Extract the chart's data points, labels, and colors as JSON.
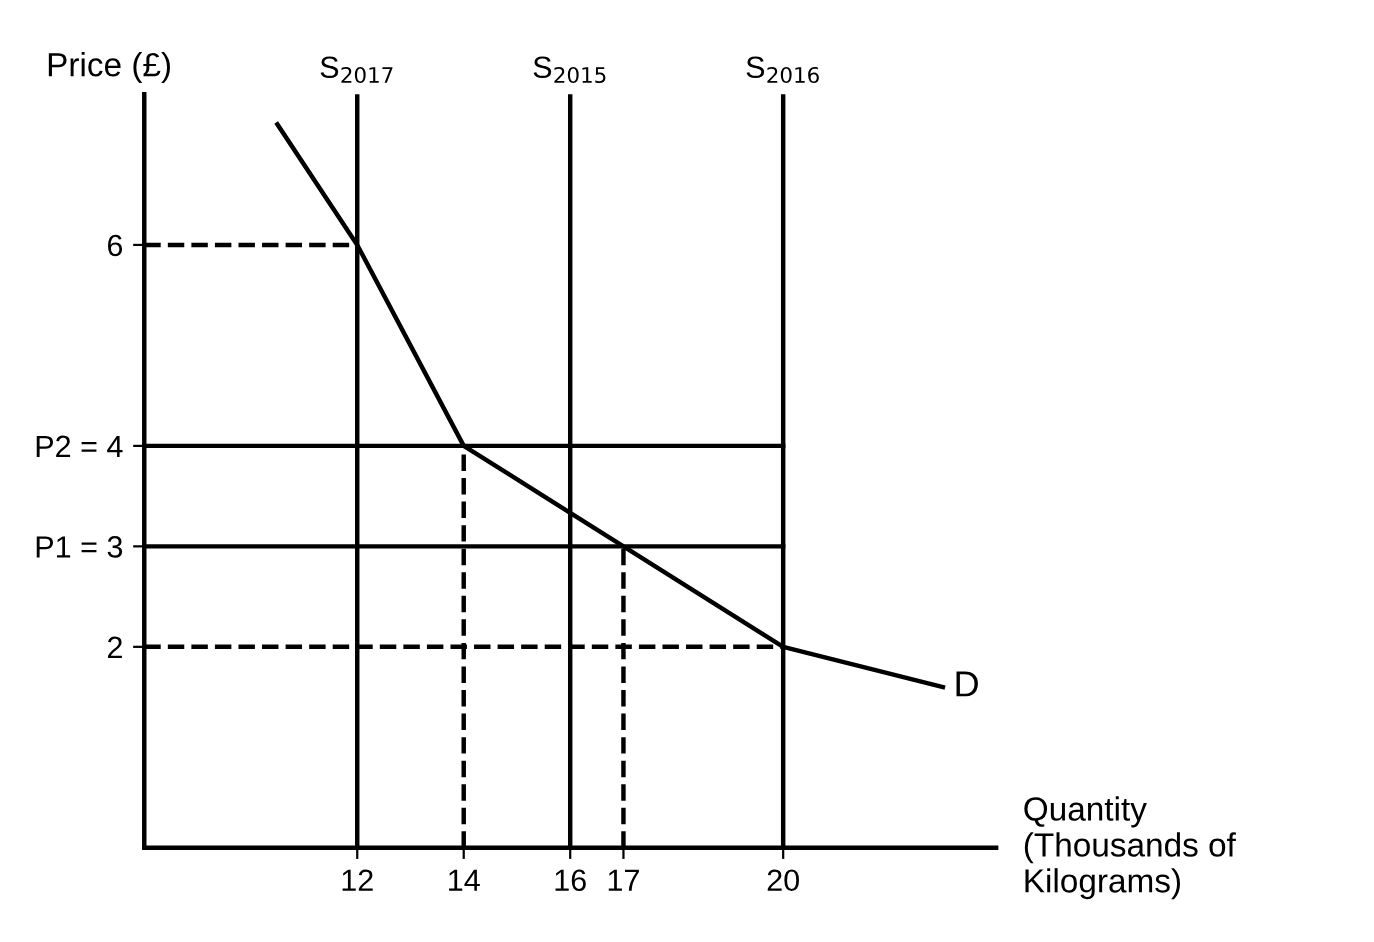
{
  "chart_data": {
    "type": "line",
    "ylabel": "Price (£)",
    "xlabel": "Quantity\n(Thousands of\nKilograms)",
    "xlim": [
      8,
      24
    ],
    "ylim": [
      0,
      7.5
    ],
    "xticks": [
      12,
      14,
      16,
      17,
      20
    ],
    "yticks": [
      2,
      {
        "value": 3,
        "label": "P1 = 3"
      },
      {
        "value": 4,
        "label": "P2 = 4"
      },
      6
    ],
    "grid": false,
    "legend": false,
    "marker": "none",
    "series": [
      {
        "color": "#000000",
        "line_style": "solid",
        "x": [
          10.5,
          12,
          14,
          17,
          20,
          23
        ],
        "values": [
          7.2,
          6,
          4,
          3,
          2,
          1.6
        ]
      },
      {
        "color": "#000000",
        "line_style": "solid",
        "x": [
          8,
          20
        ],
        "values": [
          4,
          4
        ]
      },
      {
        "color": "#000000",
        "line_style": "solid",
        "x": [
          8,
          20
        ],
        "values": [
          3,
          3
        ]
      },
      {
        "color": "#000000",
        "line_style": "dashed",
        "x": [
          8,
          12
        ],
        "values": [
          6,
          6
        ]
      },
      {
        "color": "#000000",
        "line_style": "dashed",
        "x": [
          8,
          20
        ],
        "values": [
          2,
          2
        ]
      },
      {
        "color": "#000000",
        "line_style": "dashed",
        "x": [
          14,
          14
        ],
        "values": [
          0,
          4
        ]
      },
      {
        "color": "#000000",
        "line_style": "dashed",
        "x": [
          17,
          17
        ],
        "values": [
          0,
          3
        ]
      }
    ],
    "ref_lines": [
      {
        "axis": "x",
        "value": 12,
        "label": "S$_{2017}$",
        "color": "#000000",
        "line_style": "solid"
      },
      {
        "axis": "x",
        "value": 16,
        "label": "S$_{2015}$",
        "color": "#000000",
        "line_style": "solid"
      },
      {
        "axis": "x",
        "value": 20,
        "label": "S$_{2016}$",
        "color": "#000000",
        "line_style": "solid"
      }
    ],
    "annotations": [
      {
        "text": "D",
        "x": 23,
        "y": 1.6
      }
    ]
  }
}
